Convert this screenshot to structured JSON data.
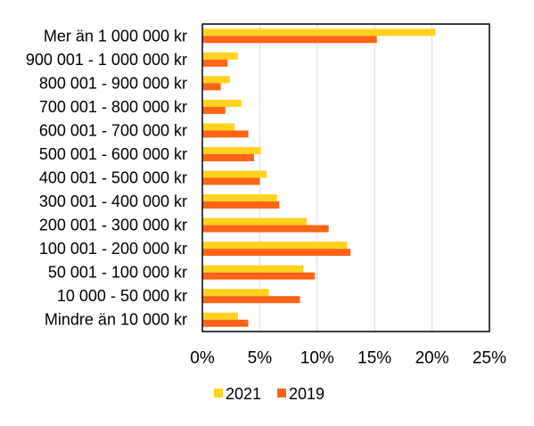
{
  "chart_data": {
    "type": "bar",
    "orientation": "horizontal",
    "categories": [
      "Mer än 1 000 000 kr",
      "900 001 - 1 000 000 kr",
      "800 001 - 900 000 kr",
      "700 001 - 800 000 kr",
      "600 001 - 700 000 kr",
      "500 001 - 600 000 kr",
      "400 001 - 500 000 kr",
      "300 001 - 400 000 kr",
      "200 001 - 300 000 kr",
      "100 001 - 200 000 kr",
      "50 001 - 100 000 kr",
      "10 000 - 50 000 kr",
      "Mindre än 10 000 kr"
    ],
    "series": [
      {
        "name": "2021",
        "color": "#FFD21F",
        "values": [
          20.3,
          3.1,
          2.4,
          3.4,
          2.8,
          5.1,
          5.6,
          6.5,
          9.1,
          12.6,
          8.8,
          5.8,
          3.1
        ]
      },
      {
        "name": "2019",
        "color": "#FF6418",
        "values": [
          15.2,
          2.2,
          1.6,
          2.0,
          4.0,
          4.5,
          5.0,
          6.7,
          11.0,
          12.9,
          9.8,
          8.5,
          4.0
        ]
      }
    ],
    "xlim": [
      0,
      25
    ],
    "xticks": [
      0,
      5,
      10,
      15,
      20,
      25
    ],
    "xtick_labels": [
      "0%",
      "5%",
      "10%",
      "15%",
      "20%",
      "25%"
    ],
    "grid": "vertical",
    "legend_position": "bottom",
    "title": "",
    "xlabel": "",
    "ylabel": ""
  }
}
